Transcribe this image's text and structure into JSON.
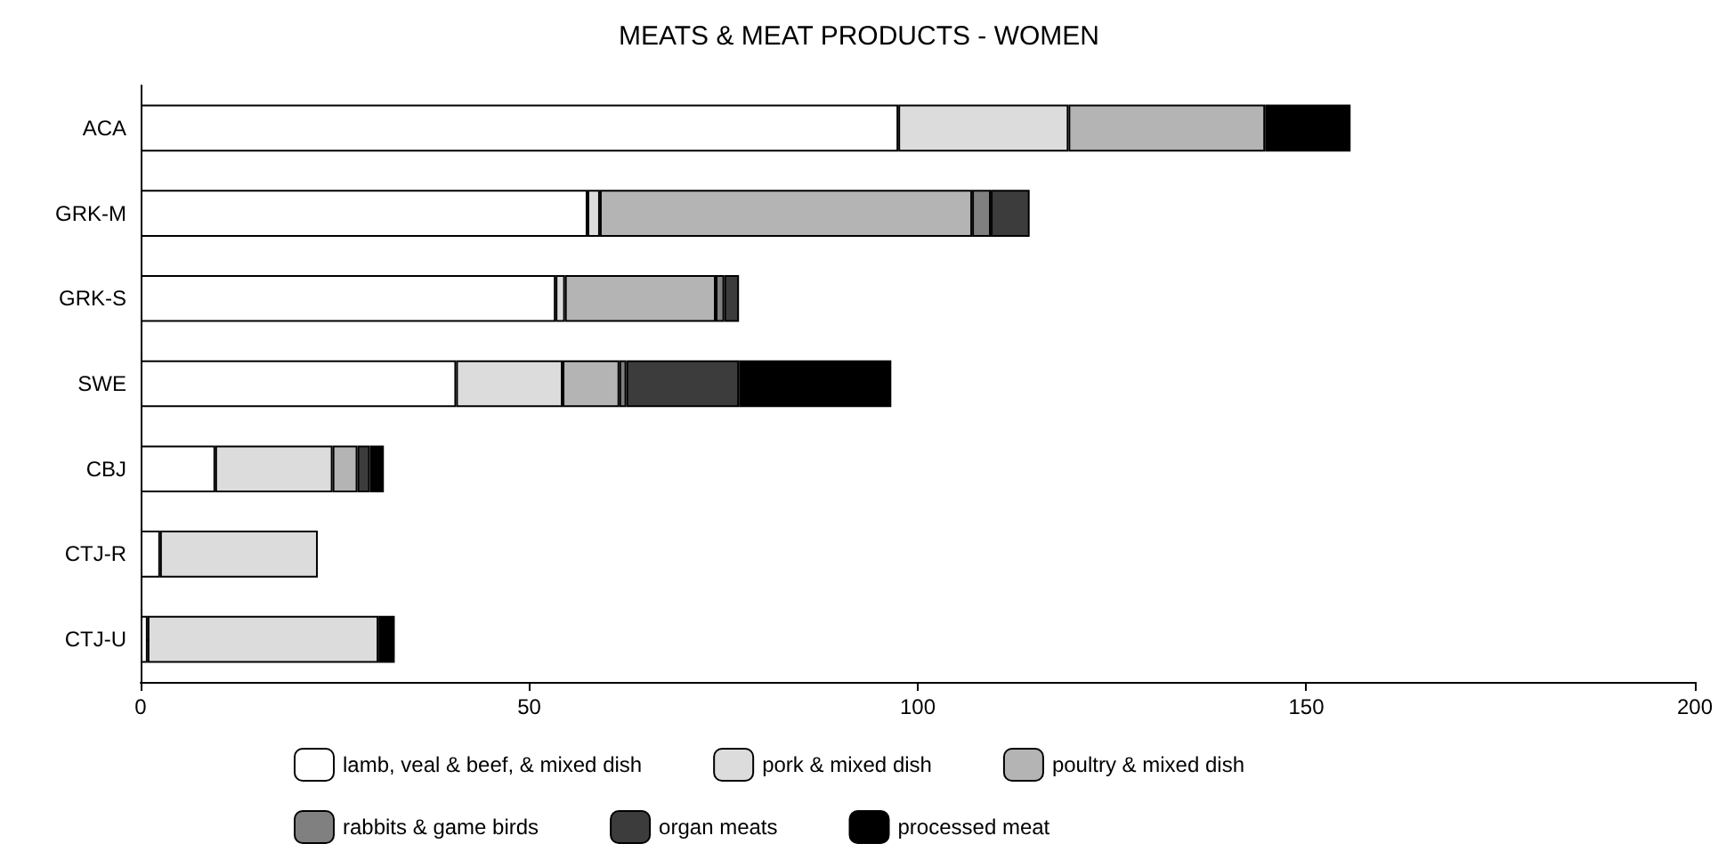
{
  "chart_data": {
    "type": "bar",
    "orientation": "horizontal",
    "stacked": true,
    "title": "MEATS & MEAT PRODUCTS - WOMEN",
    "categories": [
      "ACA",
      "GRK-M",
      "GRK-S",
      "SWE",
      "CBJ",
      "CTJ-R",
      "CTJ-U"
    ],
    "series": [
      {
        "name": "lamb, veal & beef, & mixed dish",
        "color": "#ffffff",
        "values": [
          97.5,
          57.5,
          53.4,
          40.6,
          9.6,
          2.5,
          0.9
        ]
      },
      {
        "name": "pork & mixed dish",
        "color": "#dcdcdc",
        "values": [
          21.9,
          1.6,
          1.2,
          13.7,
          15.1,
          20.3,
          29.7
        ]
      },
      {
        "name": "poultry & mixed dish",
        "color": "#b4b4b4",
        "values": [
          25.3,
          47.9,
          19.4,
          7.3,
          3.2,
          null,
          null
        ]
      },
      {
        "name": "rabbits & game birds",
        "color": "#808080",
        "values": [
          null,
          2.4,
          1.1,
          0.9,
          null,
          null,
          null
        ]
      },
      {
        "name": "organ meats",
        "color": "#3c3c3c",
        "values": [
          null,
          5,
          1.9,
          14.5,
          1.6,
          null,
          null
        ]
      },
      {
        "name": "processed meat",
        "color": "#000000",
        "values": [
          11,
          null,
          null,
          19.6,
          1.8,
          null,
          2.1
        ]
      }
    ],
    "xlim": [
      0,
      200
    ],
    "xticks": [
      0,
      50,
      100,
      150,
      200
    ],
    "grid": false,
    "legend": "bottom"
  }
}
